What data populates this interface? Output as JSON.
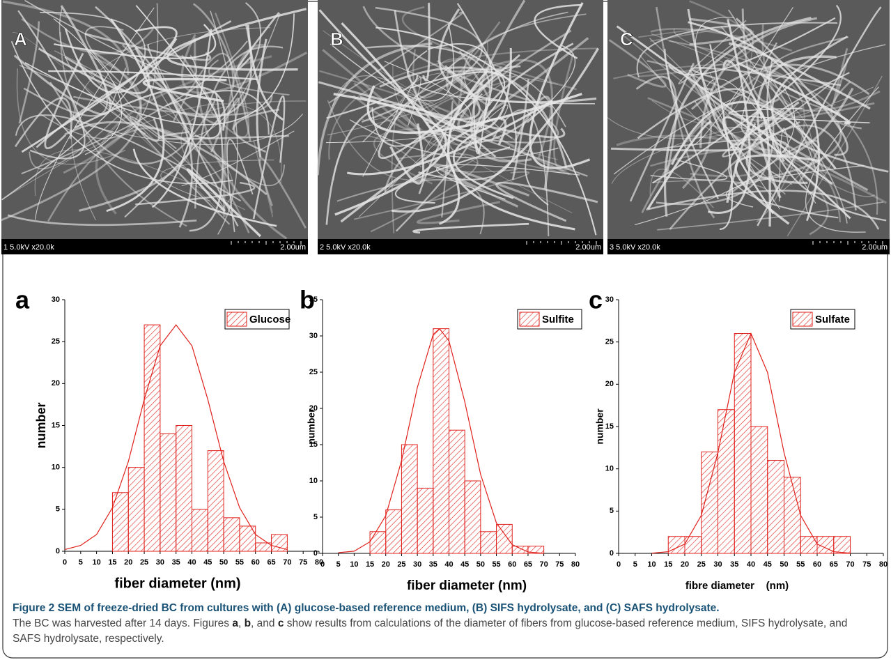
{
  "images": [
    {
      "label": "A",
      "info": "1 5.0kV x20.0k",
      "scale": "2.00um"
    },
    {
      "label": "B",
      "info": "2 5.0kV x20.0k",
      "scale": "2.00um"
    },
    {
      "label": "C",
      "info": "3 5.0kV x20.0k",
      "scale": "2.00um"
    }
  ],
  "chart_data": [
    {
      "type": "histogram",
      "panel_label": "a",
      "x_label": "fiber diameter (nm)",
      "y_label": "number",
      "bins": [
        15,
        20,
        25,
        30,
        35,
        40,
        45,
        50,
        55,
        60,
        65,
        70
      ],
      "series": [
        {
          "name": "Glucose",
          "color": "#e0201b",
          "values": [
            7,
            10,
            27,
            14,
            15,
            5,
            12,
            4,
            3,
            1,
            2
          ]
        }
      ],
      "fit": {
        "x": [
          0,
          5,
          10,
          15,
          20,
          25,
          30,
          35,
          40,
          45,
          50,
          55,
          60,
          65,
          70
        ],
        "values": [
          0.2,
          0.7,
          2.0,
          5.2,
          10.7,
          18.1,
          24.5,
          27,
          24.5,
          18.1,
          10.7,
          5.2,
          2.0,
          0.7,
          0.2
        ]
      },
      "xlim": [
        0,
        80
      ],
      "xticks": [
        0,
        5,
        10,
        15,
        20,
        25,
        30,
        35,
        40,
        45,
        50,
        55,
        60,
        65,
        70,
        75,
        80
      ],
      "ylim": [
        0,
        30
      ],
      "yticks": [
        0,
        5,
        10,
        15,
        20,
        25,
        30
      ],
      "legend": "upper right"
    },
    {
      "type": "histogram",
      "panel_label": "b",
      "x_label": "fiber diameter (nm)",
      "y_label": "number",
      "bins": [
        15,
        20,
        25,
        30,
        35,
        40,
        45,
        50,
        55,
        60,
        65,
        70
      ],
      "series": [
        {
          "name": "Sulfite",
          "color": "#e0201b",
          "values": [
            3,
            6,
            15,
            9,
            31,
            17,
            10,
            3,
            4,
            1,
            1
          ]
        }
      ],
      "fit": {
        "x": [
          5,
          10,
          15,
          20,
          25,
          30,
          35,
          37,
          40,
          45,
          50,
          55,
          60,
          65,
          70
        ],
        "values": [
          0.1,
          0.3,
          1.6,
          5.2,
          12.8,
          22.9,
          30.2,
          31,
          29.3,
          20.9,
          10.9,
          4.2,
          1.2,
          0.2,
          0.0
        ]
      },
      "xlim": [
        0,
        80
      ],
      "xticks": [
        0,
        5,
        10,
        15,
        20,
        25,
        30,
        35,
        40,
        45,
        50,
        55,
        60,
        65,
        70,
        75,
        80
      ],
      "ylim": [
        0,
        35
      ],
      "yticks": [
        0,
        5,
        10,
        15,
        20,
        25,
        30,
        35
      ],
      "legend": "upper right"
    },
    {
      "type": "histogram",
      "panel_label": "c",
      "x_label": "fibre diameter    (nm)",
      "y_label": "number",
      "bins": [
        15,
        20,
        25,
        30,
        35,
        40,
        45,
        50,
        55,
        60,
        65,
        70
      ],
      "series": [
        {
          "name": "Sulfate",
          "color": "#e0201b",
          "values": [
            2,
            2,
            12,
            17,
            26,
            15,
            11,
            9,
            2,
            2,
            2
          ]
        }
      ],
      "fit": {
        "x": [
          10,
          15,
          20,
          25,
          30,
          35,
          40,
          45,
          50,
          55,
          60,
          65,
          70
        ],
        "values": [
          0.02,
          0.2,
          1.1,
          4.5,
          11.9,
          21.4,
          26,
          21.4,
          11.9,
          4.5,
          1.1,
          0.2,
          0.02
        ]
      },
      "xlim": [
        0,
        80
      ],
      "xticks": [
        0,
        5,
        10,
        15,
        20,
        25,
        30,
        35,
        40,
        45,
        50,
        55,
        60,
        65,
        70,
        75,
        80
      ],
      "ylim": [
        0,
        30
      ],
      "yticks": [
        0,
        5,
        10,
        15,
        20,
        25,
        30
      ],
      "legend": "upper right"
    }
  ],
  "caption": {
    "title": "Figure 2 SEM of freeze-dried BC from cultures with (A) glucose-based reference medium, (B) SIFS hydrolysate, and (C) SAFS hydrolysate.",
    "body": [
      "The BC was harvested after 14 days. Figures ",
      "a",
      ", ",
      "b",
      ", and ",
      "c",
      " show results from calculations of the diameter of fibers from glucose-based reference medium, SIFS hydrolysate, and SAFS hydrolysate, respectively."
    ]
  }
}
